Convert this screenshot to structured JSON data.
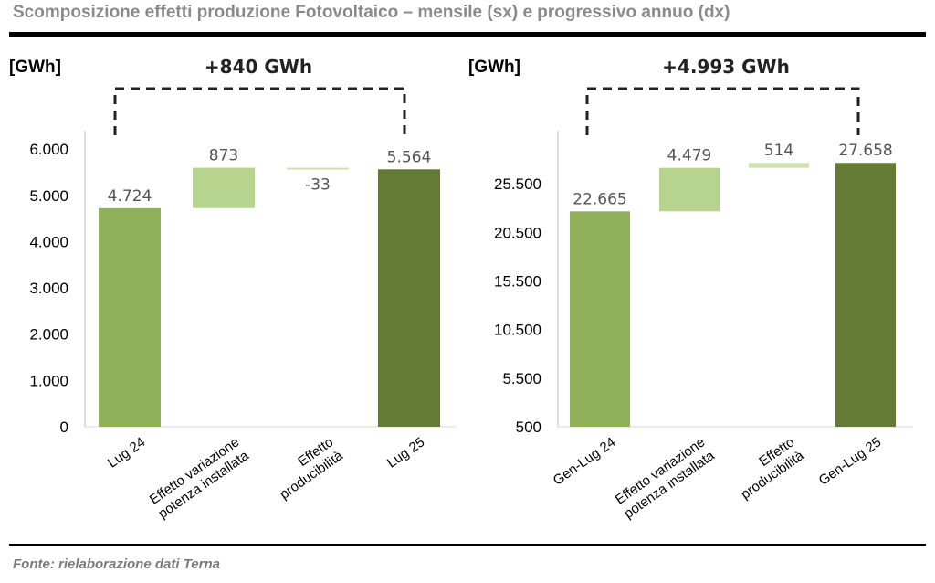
{
  "title": "Scomposizione effetti produzione Fotovoltaico – mensile (sx) e progressivo annuo (dx)",
  "source": "Fonte: rielaborazione dati Terna",
  "colors": {
    "start": "#8fb058",
    "increase": "#b7d48e",
    "effect_light": "#cfe0b2",
    "end": "#637b35",
    "bracket": "#222222"
  },
  "chart_data": [
    {
      "type": "bar",
      "subtype": "waterfall",
      "unit_label": "[GWh]",
      "delta_label": "+840 GWh",
      "categories": [
        [
          "Lug 24"
        ],
        [
          "Effetto variazione",
          "potenza installata"
        ],
        [
          "Effetto",
          "producibilità"
        ],
        [
          "Lug 25"
        ]
      ],
      "values": [
        4724,
        873,
        -33,
        5564
      ],
      "data_labels": [
        "4.724",
        "873",
        "-33",
        "5.564"
      ],
      "measures": [
        "absolute",
        "relative",
        "relative",
        "total"
      ],
      "yticks": [
        0,
        1000,
        2000,
        3000,
        4000,
        5000,
        6000
      ],
      "ytick_labels": [
        "0",
        "1.000",
        "2.000",
        "3.000",
        "4.000",
        "5.000",
        "6.000"
      ],
      "ylim": [
        0,
        6300
      ]
    },
    {
      "type": "bar",
      "subtype": "waterfall",
      "unit_label": "[GWh]",
      "delta_label": "+4.993 GWh",
      "categories": [
        [
          "Gen-Lug 24"
        ],
        [
          "Effetto variazione",
          "potenza installata"
        ],
        [
          "Effetto",
          "producibilità"
        ],
        [
          "Gen-Lug 25"
        ]
      ],
      "values": [
        22665,
        4479,
        514,
        27658
      ],
      "data_labels": [
        "22.665",
        "4.479",
        "514",
        "27.658"
      ],
      "measures": [
        "absolute",
        "relative",
        "relative",
        "total"
      ],
      "yticks": [
        500,
        5500,
        10500,
        15500,
        20500,
        25500
      ],
      "ytick_labels": [
        "500",
        "5.500",
        "10.500",
        "15.500",
        "20.500",
        "25.500"
      ],
      "ylim": [
        500,
        30500
      ]
    }
  ]
}
